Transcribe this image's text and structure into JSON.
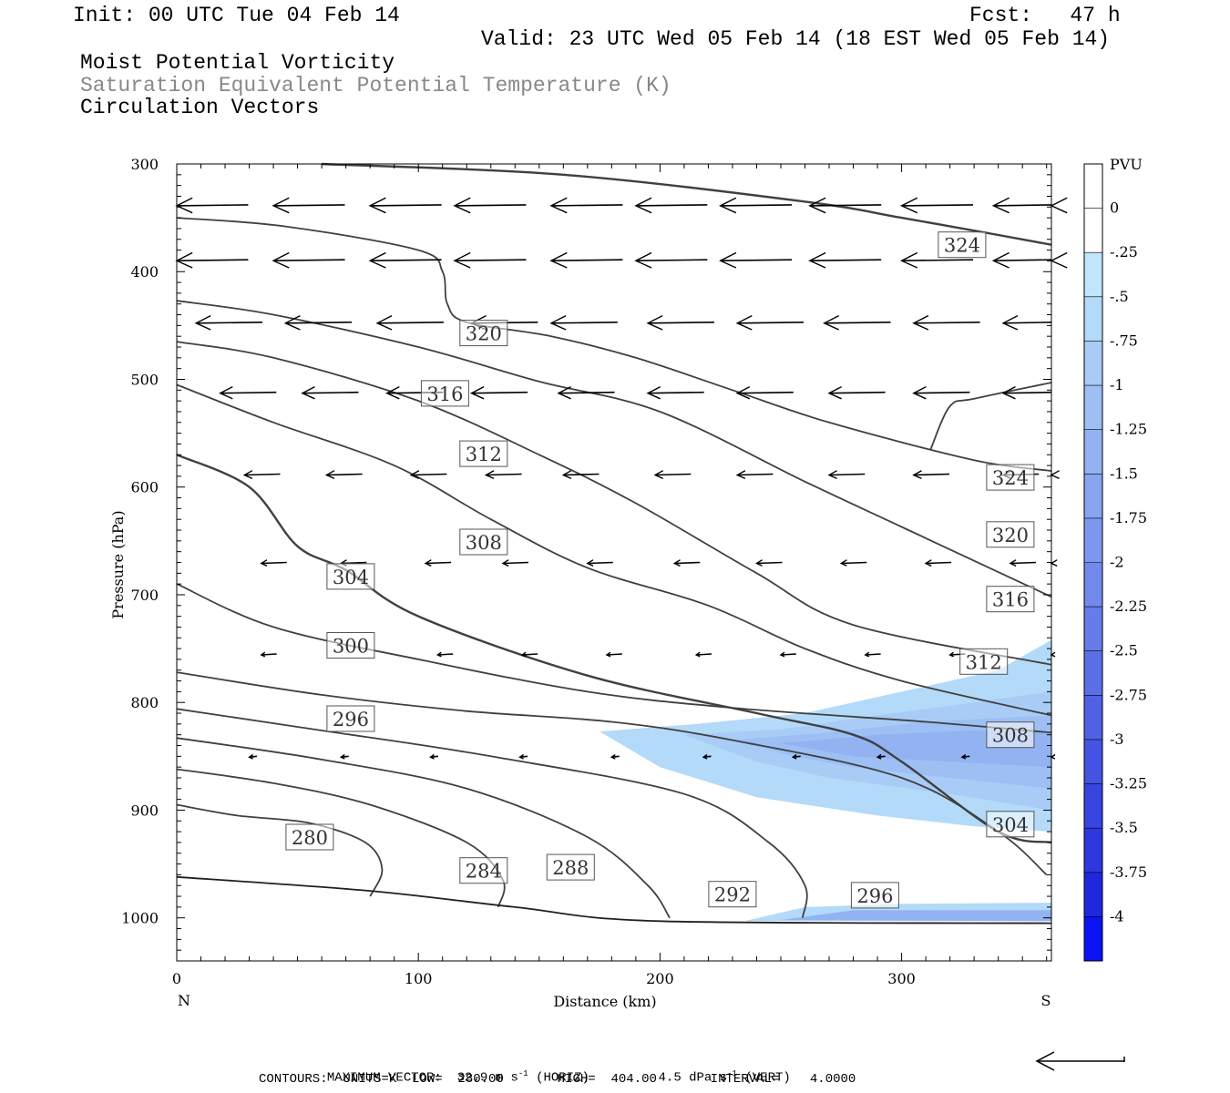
{
  "header": {
    "init": "Init: 00 UTC Tue 04 Feb 14",
    "fcst": "Fcst:   47 h",
    "valid": "Valid: 23 UTC Wed 05 Feb 14 (18 EST Wed 05 Feb 14)",
    "field1": "Moist Potential Vorticity",
    "field2": "Saturation Equivalent Potential Temperature (K)",
    "field3": "Circulation Vectors"
  },
  "footer": {
    "max_vector": "MAXIMUM VECTOR:  32.9 m s",
    "horiz": "(HORIZ)",
    "vert_val": "4.5 dPa s",
    "vert": "(VERT)",
    "exp": "-1",
    "contours": "CONTOURS:  UNITS=K  LOW=  280.00       HIGH=  404.00       INTERVAL=    4.0000"
  },
  "chart_data": {
    "type": "contour",
    "xlabel": "Distance (km)",
    "ylabel": "Pressure (hPa)",
    "x_ticks": [
      0,
      100,
      200,
      300
    ],
    "y_ticks": [
      300,
      400,
      500,
      600,
      700,
      800,
      900,
      1000
    ],
    "xlim": [
      0,
      362
    ],
    "ylim": [
      300,
      1040
    ],
    "x_end_labels": {
      "left": "N",
      "right": "S"
    },
    "colorbar": {
      "unit": "PVU",
      "labels": [
        "0",
        "-.25",
        "-.5",
        "-.75",
        "-1",
        "-1.25",
        "-1.5",
        "-1.75",
        "-2",
        "-2.25",
        "-2.5",
        "-2.75",
        "-3",
        "-3.25",
        "-3.5",
        "-3.75",
        "-4"
      ],
      "colors": [
        "#ffffff",
        "#ffffff",
        "#bfe6fa",
        "#b3daf8",
        "#a8ccf6",
        "#9dbff4",
        "#92b2f2",
        "#87a5f0",
        "#7c98ee",
        "#718aeb",
        "#667ce9",
        "#5b6fe7",
        "#5061e5",
        "#4453e3",
        "#3945e0",
        "#2e38de",
        "#1f28dc",
        "#0b13f4"
      ]
    },
    "contours": [
      {
        "label": "280",
        "points": [
          [
            0,
            895
          ],
          [
            25,
            905
          ],
          [
            55,
            912
          ],
          [
            78,
            930
          ],
          [
            85,
            955
          ],
          [
            80,
            980
          ]
        ]
      },
      {
        "label": "284",
        "points": [
          [
            0,
            862
          ],
          [
            40,
            875
          ],
          [
            80,
            895
          ],
          [
            120,
            930
          ],
          [
            135,
            965
          ],
          [
            133,
            990
          ]
        ]
      },
      {
        "label": "288",
        "points": [
          [
            0,
            833
          ],
          [
            60,
            853
          ],
          [
            120,
            880
          ],
          [
            170,
            925
          ],
          [
            195,
            970
          ],
          [
            204,
            1000
          ]
        ]
      },
      {
        "label": "292",
        "points": [
          [
            0,
            806
          ],
          [
            60,
            826
          ],
          [
            130,
            850
          ],
          [
            210,
            885
          ],
          [
            245,
            930
          ],
          [
            260,
            970
          ],
          [
            259,
            1000
          ]
        ]
      },
      {
        "label": "296",
        "points": [
          [
            0,
            772
          ],
          [
            60,
            793
          ],
          [
            120,
            808
          ],
          [
            180,
            818
          ],
          [
            230,
            835
          ],
          [
            300,
            870
          ],
          [
            340,
            920
          ],
          [
            360,
            960
          ]
        ]
      },
      {
        "label": "300",
        "points": [
          [
            0,
            690
          ],
          [
            40,
            730
          ],
          [
            100,
            760
          ],
          [
            170,
            790
          ],
          [
            230,
            805
          ],
          [
            310,
            818
          ],
          [
            362,
            828
          ]
        ]
      },
      {
        "label": "304",
        "points": [
          [
            0,
            570
          ],
          [
            30,
            600
          ],
          [
            50,
            655
          ],
          [
            70,
            677
          ],
          [
            100,
            720
          ],
          [
            170,
            775
          ],
          [
            240,
            810
          ],
          [
            280,
            830
          ],
          [
            300,
            855
          ],
          [
            340,
            920
          ],
          [
            362,
            930
          ]
        ]
      },
      {
        "label": "308",
        "points": [
          [
            0,
            505
          ],
          [
            40,
            540
          ],
          [
            90,
            580
          ],
          [
            130,
            630
          ],
          [
            170,
            675
          ],
          [
            220,
            710
          ],
          [
            260,
            750
          ],
          [
            300,
            780
          ],
          [
            362,
            812
          ]
        ]
      },
      {
        "label": "312",
        "points": [
          [
            0,
            465
          ],
          [
            40,
            480
          ],
          [
            100,
            520
          ],
          [
            150,
            570
          ],
          [
            190,
            615
          ],
          [
            240,
            680
          ],
          [
            280,
            728
          ],
          [
            362,
            765
          ]
        ]
      },
      {
        "label": "316",
        "points": [
          [
            0,
            427
          ],
          [
            40,
            440
          ],
          [
            100,
            470
          ],
          [
            150,
            502
          ],
          [
            200,
            530
          ],
          [
            260,
            595
          ],
          [
            300,
            637
          ],
          [
            362,
            702
          ]
        ]
      },
      {
        "label": "320",
        "points": [
          [
            0,
            350
          ],
          [
            45,
            358
          ],
          [
            100,
            380
          ],
          [
            110,
            400
          ],
          [
            112,
            430
          ],
          [
            120,
            447
          ],
          [
            155,
            460
          ],
          [
            190,
            480
          ],
          [
            230,
            510
          ],
          [
            270,
            540
          ],
          [
            330,
            575
          ],
          [
            362,
            585
          ]
        ]
      },
      {
        "label": "324",
        "points": [
          [
            60,
            300
          ],
          [
            160,
            310
          ],
          [
            260,
            335
          ],
          [
            300,
            350
          ],
          [
            340,
            366
          ],
          [
            362,
            375
          ]
        ]
      },
      {
        "label": "324b",
        "points": [
          [
            362,
            503
          ],
          [
            330,
            518
          ],
          [
            320,
            525
          ],
          [
            312,
            565
          ]
        ]
      }
    ],
    "contour_labels": [
      {
        "text": "280",
        "x": 55,
        "y": 925
      },
      {
        "text": "284",
        "x": 127,
        "y": 956
      },
      {
        "text": "288",
        "x": 163,
        "y": 953
      },
      {
        "text": "292",
        "x": 230,
        "y": 978
      },
      {
        "text": "296",
        "x": 289,
        "y": 979
      },
      {
        "text": "296",
        "x": 72,
        "y": 815
      },
      {
        "text": "300",
        "x": 72,
        "y": 747
      },
      {
        "text": "304",
        "x": 72,
        "y": 683
      },
      {
        "text": "304",
        "x": 345,
        "y": 913
      },
      {
        "text": "308",
        "x": 127,
        "y": 651
      },
      {
        "text": "308",
        "x": 345,
        "y": 830
      },
      {
        "text": "312",
        "x": 127,
        "y": 569
      },
      {
        "text": "312",
        "x": 334,
        "y": 762
      },
      {
        "text": "316",
        "x": 111,
        "y": 513
      },
      {
        "text": "316",
        "x": 345,
        "y": 704
      },
      {
        "text": "320",
        "x": 127,
        "y": 457
      },
      {
        "text": "320",
        "x": 345,
        "y": 644
      },
      {
        "text": "324",
        "x": 325,
        "y": 375
      },
      {
        "text": "324",
        "x": 345,
        "y": 591
      }
    ],
    "pv_fill": [
      {
        "level": -0.5,
        "points": [
          [
            175,
            827
          ],
          [
            215,
            820
          ],
          [
            260,
            810
          ],
          [
            300,
            790
          ],
          [
            340,
            770
          ],
          [
            362,
            742
          ],
          [
            362,
            920
          ],
          [
            330,
            915
          ],
          [
            290,
            905
          ],
          [
            240,
            888
          ],
          [
            200,
            860
          ]
        ]
      },
      {
        "level": -0.75,
        "points": [
          [
            210,
            830
          ],
          [
            250,
            825
          ],
          [
            290,
            812
          ],
          [
            330,
            800
          ],
          [
            362,
            790
          ],
          [
            362,
            900
          ],
          [
            320,
            885
          ],
          [
            270,
            870
          ],
          [
            240,
            855
          ]
        ]
      },
      {
        "level": -1.0,
        "points": [
          [
            230,
            835
          ],
          [
            270,
            828
          ],
          [
            310,
            818
          ],
          [
            362,
            812
          ],
          [
            362,
            880
          ],
          [
            320,
            870
          ],
          [
            280,
            860
          ],
          [
            255,
            850
          ]
        ]
      },
      {
        "level": -1.25,
        "points": [
          [
            250,
            838
          ],
          [
            290,
            830
          ],
          [
            330,
            826
          ],
          [
            362,
            828
          ],
          [
            362,
            860
          ],
          [
            320,
            855
          ],
          [
            280,
            850
          ]
        ]
      },
      {
        "level": -0.5,
        "points": [
          [
            235,
            1003
          ],
          [
            260,
            990
          ],
          [
            300,
            987
          ],
          [
            362,
            986
          ],
          [
            362,
            1003
          ]
        ]
      },
      {
        "level": -1.25,
        "points": [
          [
            250,
            1002
          ],
          [
            280,
            993
          ],
          [
            362,
            993
          ],
          [
            362,
            1003
          ]
        ]
      }
    ],
    "vectors": [
      {
        "y": 338,
        "x": [
          0,
          40,
          80,
          115,
          155,
          190,
          225,
          262,
          300,
          338,
          362
        ],
        "u": -28
      },
      {
        "y": 389,
        "x": [
          0,
          40,
          80,
          115,
          155,
          190,
          225,
          262,
          300,
          338,
          362
        ],
        "u": -28
      },
      {
        "y": 447,
        "x": [
          8,
          45,
          83,
          122,
          155,
          195,
          232,
          268,
          305,
          342
        ],
        "u": -26
      },
      {
        "y": 512,
        "x": [
          18,
          52,
          87,
          122,
          158,
          195,
          232,
          270,
          305,
          342
        ],
        "u": -22
      },
      {
        "y": 588,
        "x": [
          28,
          62,
          97,
          128,
          160,
          198,
          232,
          270,
          305,
          342,
          362
        ],
        "u": -14
      },
      {
        "y": 670,
        "x": [
          35,
          68,
          103,
          135,
          170,
          206,
          240,
          275,
          310,
          345,
          362
        ],
        "u": -10
      },
      {
        "y": 755,
        "x": [
          35,
          108,
          143,
          178,
          215,
          250,
          285,
          320,
          362
        ],
        "u": -6
      },
      {
        "y": 850,
        "x": [
          30,
          68,
          105,
          142,
          180,
          218,
          255,
          290,
          325,
          362
        ],
        "u": -3
      }
    ]
  }
}
